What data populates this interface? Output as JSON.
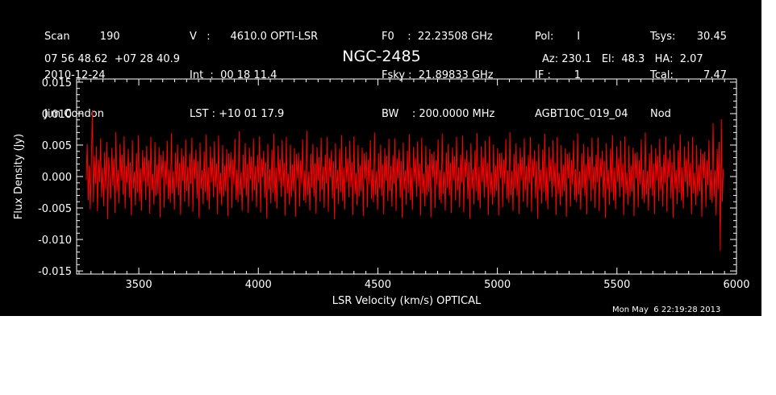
{
  "header": {
    "col1": [
      "Scan         190",
      "2010-12-24",
      "Jim Condon"
    ],
    "col2": [
      "V   :      4610.0 OPTI-LSR",
      "Int  :  00 18 11.4",
      "LST : +10 01 17.9"
    ],
    "col3": [
      "F0    :  22.23508 GHz",
      "Fsky :  21.89833 GHz",
      "BW    : 200.0000 MHz"
    ],
    "col4": [
      "Pol:       I",
      "IF :       1",
      "AGBT10C_019_04"
    ],
    "col5a": [
      "Tsys:",
      "Tcal:",
      "Nod"
    ],
    "col5b": [
      "30.45",
      "7.47",
      ""
    ],
    "coords": "07 56 48.62  +07 28 40.9",
    "azelha": "Az: 230.1   El:  48.3   HA:  2.07"
  },
  "timestamp": "Mon May  6 22:19:28 2013",
  "colors": {
    "background": "#000000",
    "axes": "#ffffff",
    "series": "#ff0000"
  },
  "chart_data": {
    "type": "line",
    "title": "NGC-2485",
    "xlabel": "LSR Velocity (km/s) OPTICAL",
    "ylabel": "Flux Density (Jy)",
    "xlim": [
      3240,
      6000
    ],
    "ylim": [
      -0.0155,
      0.0155
    ],
    "xticks": [
      3500,
      4000,
      4500,
      5000,
      5500,
      6000
    ],
    "xtick_labels": [
      "3500",
      "4000",
      "4500",
      "5000",
      "5500",
      "6000"
    ],
    "yticks": [
      0.015,
      0.01,
      0.005,
      0.0,
      -0.005,
      -0.01,
      -0.015
    ],
    "ytick_labels": [
      "0.015",
      "0.010",
      "0.005",
      "0.000",
      "-0.005",
      "-0.010",
      "-0.015"
    ],
    "grid": false,
    "series": [
      {
        "x_start": 3280,
        "x_end": 5945,
        "y": [
          -0.0005,
          0.0052,
          -0.0038,
          0.0018,
          -0.0052,
          0.0021,
          0.0105,
          -0.0041,
          0.0033,
          -0.0012,
          0.0048,
          -0.0055,
          0.0027,
          -0.0009,
          0.0061,
          -0.0033,
          0.0014,
          -0.0047,
          0.0039,
          -0.0021,
          0.0055,
          -0.0068,
          0.0031,
          0.0002,
          -0.0036,
          0.0046,
          -0.0015,
          0.0029,
          -0.0058,
          0.0071,
          -0.0024,
          0.0011,
          -0.0043,
          0.0052,
          -0.0006,
          0.0035,
          -0.0029,
          0.0064,
          -0.0051,
          0.0017,
          -0.0011,
          0.0044,
          -0.0034,
          0.0023,
          -0.0062,
          0.0058,
          -0.0019,
          0.0008,
          -0.0046,
          0.0037,
          -0.0026,
          0.0066,
          -0.0039,
          0.0013,
          -0.0054,
          0.0042,
          -0.0008,
          0.0031,
          -0.0037,
          0.0049,
          -0.0016,
          0.0026,
          -0.0059,
          0.0063,
          -0.0022,
          0.0004,
          -0.0045,
          0.0055,
          -0.0031,
          0.0019,
          -0.0028,
          0.0047,
          -0.0065,
          0.0034,
          -0.0003,
          0.0041,
          -0.0049,
          0.0025,
          -0.0014,
          0.0057,
          -0.0036,
          0.0012,
          -0.0042,
          0.0069,
          -0.0027,
          0.0009,
          -0.0053,
          0.0038,
          -0.0018,
          0.0051,
          -0.003,
          0.0022,
          -0.0061,
          0.0045,
          -0.0007,
          0.0033,
          -0.004,
          0.0059,
          -0.0023,
          0.0016,
          -0.0048,
          0.0036,
          -0.0012,
          0.0062,
          -0.0056,
          0.0028,
          -0.0004,
          0.0043,
          -0.0035,
          0.0024,
          -0.0066,
          0.0054,
          -0.002,
          0.001,
          -0.0044,
          0.004,
          -0.0025,
          0.0067,
          -0.0038,
          0.0015,
          -0.0052,
          0.0048,
          -0.0009,
          0.003,
          -0.0033,
          0.0056,
          -0.0017,
          0.0021,
          -0.006,
          0.0065,
          -0.0028,
          0.0006,
          -0.0046,
          0.005,
          -0.0032,
          0.0018,
          -0.0024,
          0.0044,
          -0.0063,
          0.0037,
          -0.0002,
          0.0039,
          -0.005,
          0.0027,
          -0.0013,
          0.006,
          -0.0037,
          0.0011,
          -0.0041,
          0.0072,
          -0.0029,
          0.0007,
          -0.0055,
          0.0035,
          -0.0019,
          0.0053,
          -0.0031,
          0.002,
          -0.0058,
          0.0046,
          -0.0005,
          0.0032,
          -0.0039,
          0.0061,
          -0.0022,
          0.0017,
          -0.0049,
          0.0034,
          -0.001,
          0.0064,
          -0.0057,
          0.0029,
          -0.0001,
          0.0041,
          -0.0034,
          0.0023,
          -0.0067,
          0.0052,
          -0.0021,
          0.0012,
          -0.0043,
          0.0043,
          -0.0026,
          0.0068,
          -0.004,
          0.0014,
          -0.0051,
          0.0049,
          -0.0008,
          0.0028,
          -0.0032,
          0.0058,
          -0.0016,
          0.0022,
          -0.0062,
          0.0063,
          -0.0027,
          0.0005,
          -0.0045,
          0.0051,
          -0.0033,
          0.0019,
          -0.0023,
          0.0045,
          -0.0064,
          0.0036,
          -0.0003,
          0.0038,
          -0.0048,
          0.0026,
          -0.0012,
          0.0059,
          -0.0038,
          0.001,
          -0.0042,
          0.0073,
          -0.003,
          0.0008,
          -0.0054,
          0.0036,
          -0.0018,
          0.0052,
          -0.0032,
          0.0021,
          -0.0059,
          0.0047,
          -0.0006,
          0.0031,
          -0.004,
          0.0062,
          -0.0021,
          0.0016,
          -0.005,
          0.0035,
          -0.0011,
          0.0063,
          -0.0056,
          0.003,
          -0.0002,
          0.0042,
          -0.0035,
          0.0024,
          -0.0068,
          0.0053,
          -0.002,
          0.0011,
          -0.0044,
          0.0044,
          -0.0025,
          0.0066,
          -0.0039,
          0.0015,
          -0.0052,
          0.0048,
          -0.0009,
          0.0029,
          -0.0033,
          0.0057,
          -0.0017,
          0.0023,
          -0.0061,
          0.0064,
          -0.0028,
          0.0006,
          -0.0046,
          0.005,
          -0.0032,
          0.0018,
          -0.0024,
          0.0046,
          -0.0063,
          0.0037,
          -0.0004,
          0.0039,
          -0.0049,
          0.0027,
          -0.0013,
          0.0058,
          -0.0036,
          0.0012,
          -0.0041,
          0.007,
          -0.0029,
          0.0009,
          -0.0053,
          0.0037,
          -0.0019,
          0.0051,
          -0.0031,
          0.002,
          -0.006,
          0.0045,
          -0.0007,
          0.0033,
          -0.0039,
          0.006,
          -0.0023,
          0.0017,
          -0.0048,
          0.0034,
          -0.0012,
          0.0061,
          -0.0055,
          0.0029,
          -0.0003,
          0.0043,
          -0.0034,
          0.0025,
          -0.0066,
          0.0054,
          -0.0021,
          0.001,
          -0.0045,
          0.0041,
          -0.0026,
          0.0067,
          -0.0037,
          0.0014,
          -0.0053,
          0.0047,
          -0.0008,
          0.003,
          -0.0032,
          0.0056,
          -0.0016,
          0.0021,
          -0.0062,
          0.0062,
          -0.0027,
          0.0005,
          -0.0047,
          0.0049,
          -0.0031,
          0.0019,
          -0.0025,
          0.0044,
          -0.0065,
          0.0036,
          -0.0002,
          0.004,
          -0.005,
          0.0026,
          -0.0014,
          0.0059,
          -0.0037,
          0.0011,
          -0.0043,
          0.0068,
          -0.0028,
          0.0008,
          -0.0054,
          0.0038,
          -0.0018,
          0.0052,
          -0.003,
          0.0022,
          -0.0058,
          0.0046,
          -0.0006,
          0.0032,
          -0.0038,
          0.0063,
          -0.0022,
          0.0015,
          -0.0049,
          0.0035,
          -0.001,
          0.0065,
          -0.0057,
          0.0028,
          -0.0001,
          0.0042,
          -0.0036,
          0.0023,
          -0.0067,
          0.0053,
          -0.002,
          0.0012,
          -0.0044,
          0.0042,
          -0.0024,
          0.0069,
          -0.0038,
          0.0016,
          -0.0051,
          0.0048,
          -0.0009,
          0.0031,
          -0.0034,
          0.0057,
          -0.0017,
          0.0022,
          -0.0061,
          0.0064,
          -0.0029,
          0.0007,
          -0.0045,
          0.0051,
          -0.0033,
          0.0018,
          -0.0023,
          0.0045,
          -0.0062,
          0.0037,
          -0.0003,
          0.0038,
          -0.0049,
          0.0027,
          -0.0012,
          0.006,
          -0.0036,
          0.001,
          -0.0042,
          0.0071,
          -0.003,
          0.0009,
          -0.0055,
          0.0036,
          -0.0019,
          0.0053,
          -0.0031,
          0.0021,
          -0.0059,
          0.0046,
          -0.0005,
          0.0031,
          -0.004,
          0.0061,
          -0.0022,
          0.0017,
          -0.0049,
          0.0034,
          -0.0011,
          0.0063,
          -0.0056,
          0.0029,
          -0.0002,
          0.0042,
          -0.0035,
          0.0024,
          -0.0067,
          0.0052,
          -0.0021,
          0.0011,
          -0.0043,
          0.0043,
          -0.0025,
          0.0068,
          -0.0039,
          0.0015,
          -0.0052,
          0.0047,
          -0.0008,
          0.0029,
          -0.0033,
          0.0058,
          -0.0016,
          0.0022,
          -0.0061,
          0.0063,
          -0.0028,
          0.0006,
          -0.0046,
          0.005,
          -0.0032,
          0.0019,
          -0.0024,
          0.0045,
          -0.0064,
          0.0036,
          -0.0003,
          0.0039,
          -0.0048,
          0.0026,
          -0.0013,
          0.0058,
          -0.0037,
          0.0012,
          -0.0041,
          0.0069,
          -0.0029,
          0.0008,
          -0.0053,
          0.0037,
          -0.0018,
          0.0052,
          -0.0031,
          0.002,
          -0.006,
          0.0047,
          -0.0006,
          0.0032,
          -0.0039,
          0.0062,
          -0.0021,
          0.0016,
          -0.005,
          0.0035,
          -0.001,
          0.0062,
          -0.0055,
          0.003,
          -0.0002,
          0.0041,
          -0.0034,
          0.0025,
          -0.0066,
          0.0053,
          -0.002,
          0.0011,
          -0.0045,
          0.0044,
          -0.0025,
          0.0066,
          -0.0038,
          0.0014,
          -0.0052,
          0.0048,
          -0.0009,
          0.003,
          -0.0033,
          0.0057,
          -0.0017,
          0.0021,
          -0.0061,
          0.0064,
          -0.0028,
          0.0006,
          -0.0045,
          0.0049,
          -0.0032,
          0.0018,
          -0.0024,
          0.0046,
          -0.0063,
          0.0037,
          -0.0003,
          0.0039,
          -0.0049,
          0.0026,
          -0.0013,
          0.0059,
          -0.0036,
          0.0011,
          -0.0042,
          0.007,
          -0.0029,
          0.0009,
          -0.0054,
          0.0037,
          -0.0019,
          0.0051,
          -0.0031,
          0.0021,
          -0.0059,
          0.0045,
          -0.0006,
          0.0033,
          -0.0039,
          0.006,
          -0.0022,
          0.0016,
          -0.0048,
          0.0035,
          -0.0011,
          0.0064,
          -0.0056,
          0.0029,
          -0.0002,
          0.0043,
          -0.0035,
          0.0023,
          -0.0066,
          0.0052,
          -0.002,
          0.0011,
          -0.0044,
          0.0042,
          -0.0026,
          0.0067,
          -0.0038,
          0.0015,
          -0.0051,
          0.0048,
          -0.0009,
          0.0029,
          -0.0033,
          0.0056,
          -0.0016,
          0.0022,
          -0.006,
          0.0063,
          -0.0027,
          0.0006,
          -0.0046,
          0.005,
          -0.0031,
          0.0019,
          -0.0024,
          0.0044,
          -0.0064,
          0.0036,
          -0.0003,
          0.004,
          -0.0049,
          0.0026,
          -0.0014,
          0.0058,
          -0.0037,
          0.0011,
          -0.0042,
          0.0085,
          -0.0032,
          0.001,
          -0.0062,
          0.0044,
          -0.0021,
          0.0055,
          -0.0118,
          0.0091,
          -0.004,
          0.0012
        ]
      }
    ]
  }
}
